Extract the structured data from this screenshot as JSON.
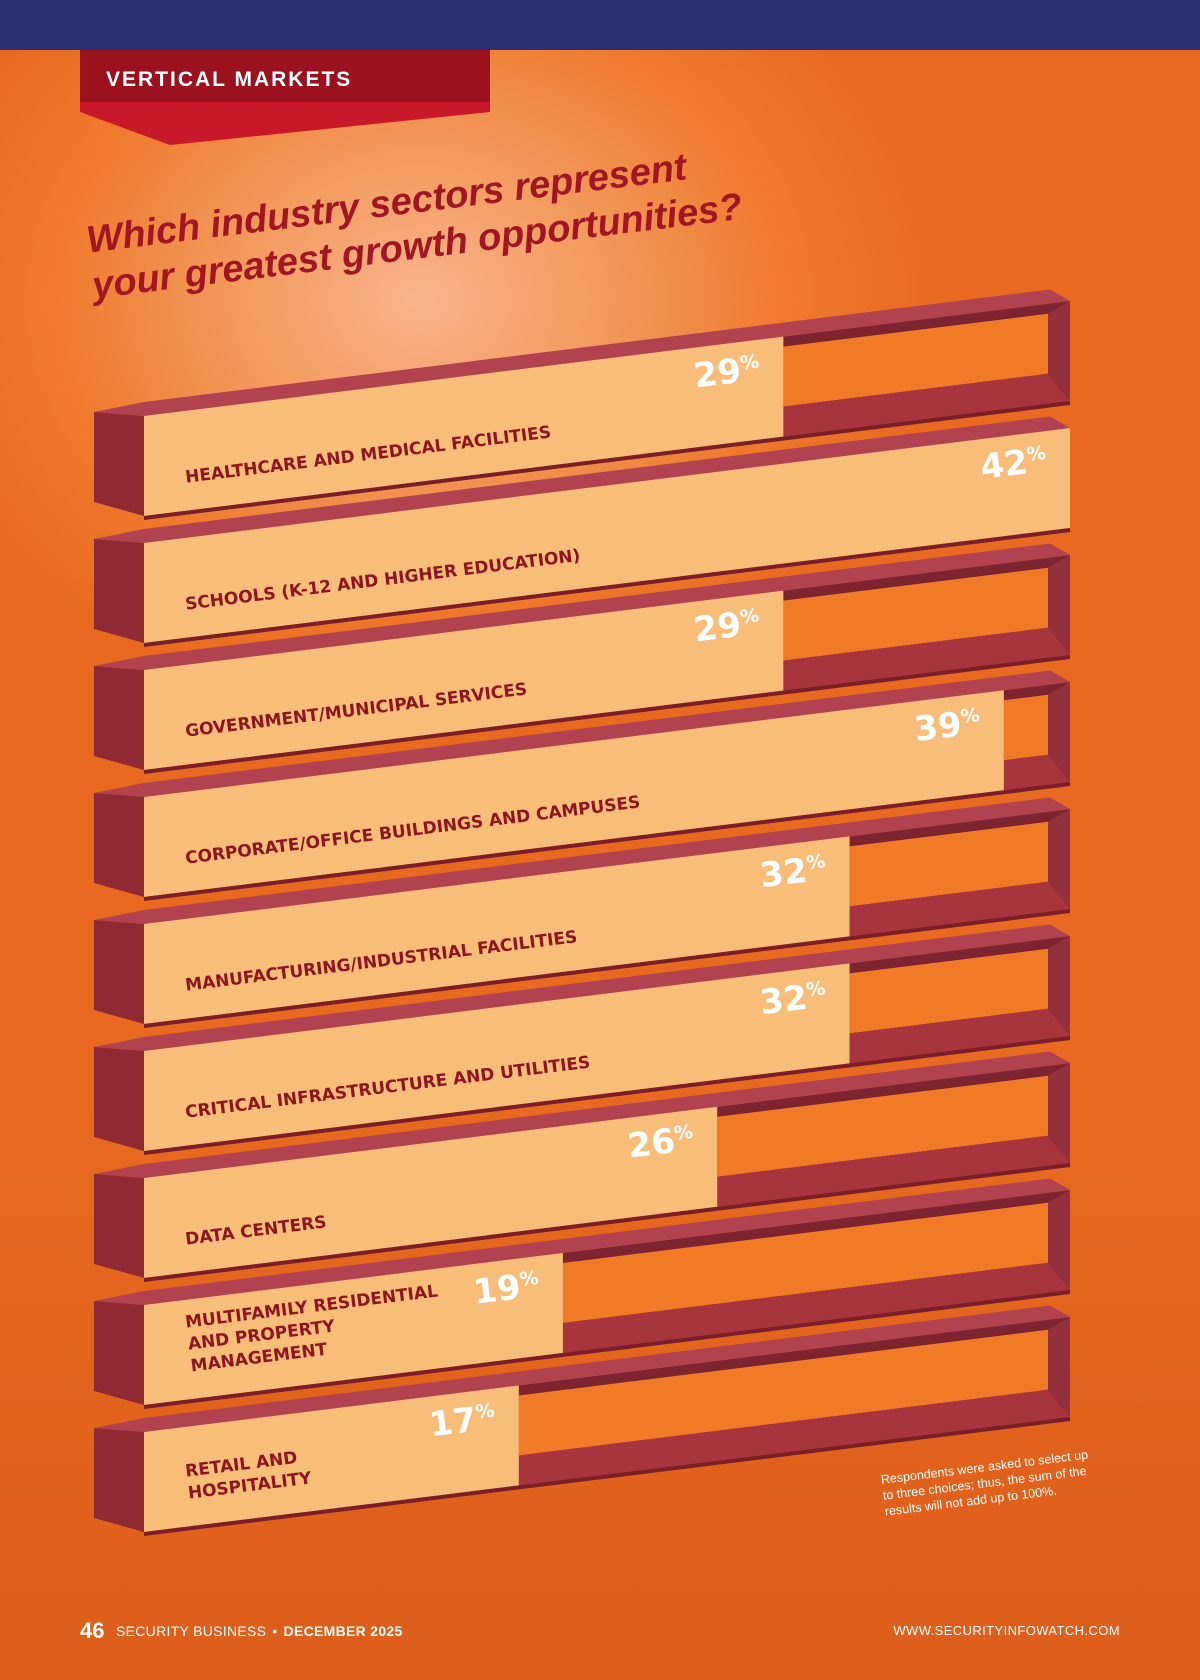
{
  "header": {
    "section_label": "VERTICAL MARKETS"
  },
  "colors": {
    "top_bar": "#2a3072",
    "banner": "#9b111e",
    "bar_fill": "#f9bd7a",
    "frame": "#a8353e",
    "headline": "#a01622"
  },
  "chart_data": {
    "type": "bar",
    "orientation": "horizontal",
    "title": "Which industry sectors represent your greatest growth opportunities?",
    "title_lines": [
      "Which industry sectors represent",
      "your greatest growth opportunities?"
    ],
    "unit": "%",
    "xlim": [
      0,
      42
    ],
    "categories": [
      "HEALTHCARE AND MEDICAL FACILITIES",
      "SCHOOLS (K-12 AND HIGHER EDUCATION)",
      "GOVERNMENT/MUNICIPAL SERVICES",
      "CORPORATE/OFFICE BUILDINGS AND CAMPUSES",
      "MANUFACTURING/INDUSTRIAL FACILITIES",
      "CRITICAL INFRASTRUCTURE AND UTILITIES",
      "DATA CENTERS",
      "MULTIFAMILY RESIDENTIAL AND PROPERTY MANAGEMENT",
      "RETAIL AND HOSPITALITY"
    ],
    "label_lines": [
      [
        "HEALTHCARE AND MEDICAL FACILITIES"
      ],
      [
        "SCHOOLS (K-12 AND HIGHER EDUCATION)"
      ],
      [
        "GOVERNMENT/MUNICIPAL SERVICES"
      ],
      [
        "CORPORATE/OFFICE BUILDINGS AND CAMPUSES"
      ],
      [
        "MANUFACTURING/INDUSTRIAL FACILITIES"
      ],
      [
        "CRITICAL INFRASTRUCTURE AND UTILITIES"
      ],
      [
        "DATA CENTERS"
      ],
      [
        "MULTIFAMILY RESIDENTIAL",
        "AND PROPERTY",
        "MANAGEMENT"
      ],
      [
        "RETAIL AND",
        "HOSPITALITY"
      ]
    ],
    "values": [
      29,
      42,
      29,
      39,
      32,
      32,
      26,
      19,
      17
    ],
    "value_labels": [
      "29",
      "42",
      "29",
      "39",
      "32",
      "32",
      "26",
      "19",
      "17"
    ],
    "grid": false,
    "legend": "none"
  },
  "footnote": "Respondents were asked to select up to three choices; thus, the sum of the results will not add up to 100%.",
  "footer": {
    "page_number": "46",
    "publication": "SECURITY BUSINESS",
    "bullet": "•",
    "issue": "DECEMBER 2025",
    "website": "WWW.SECURITYINFOWATCH.COM"
  }
}
